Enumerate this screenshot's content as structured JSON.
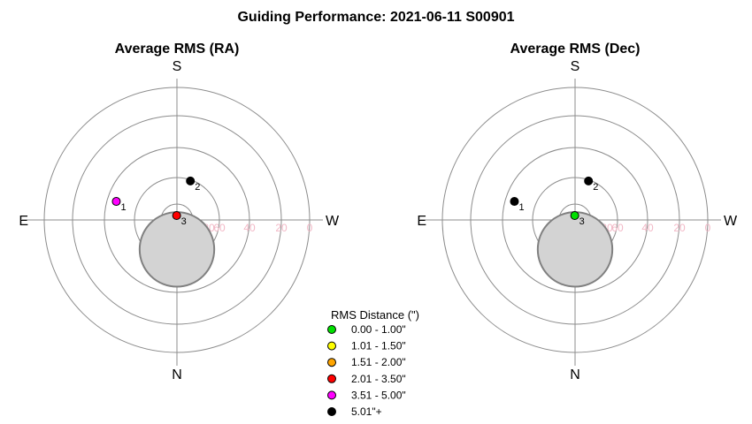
{
  "title": "Guiding Performance: 2021-06-11 S00901",
  "chart_data": [
    {
      "type": "scatter",
      "subtitle": "Average RMS (RA)",
      "compass": {
        "top": "S",
        "bottom": "N",
        "left": "E",
        "right": "W"
      },
      "tick_labels": [
        "80",
        "60",
        "40",
        "20",
        "0"
      ],
      "altitude_rings": [
        80,
        60,
        40,
        20,
        0
      ],
      "points": [
        {
          "label": "1",
          "azimuth": 73,
          "altitude": 47,
          "rms_category": "3.51 - 5.00\""
        },
        {
          "label": "2",
          "azimuth": 341,
          "altitude": 62,
          "rms_category": "5.01\"+"
        },
        {
          "label": "3",
          "azimuth": 4,
          "altitude": 87,
          "rms_category": "2.01 - 3.50\""
        }
      ],
      "obstruction": {
        "azimuth": 180,
        "altitude": 70,
        "radius_deg": 25
      }
    },
    {
      "type": "scatter",
      "subtitle": "Average RMS (Dec)",
      "compass": {
        "top": "S",
        "bottom": "N",
        "left": "E",
        "right": "W"
      },
      "tick_labels": [
        "80",
        "60",
        "40",
        "20",
        "0"
      ],
      "altitude_rings": [
        80,
        60,
        40,
        20,
        0
      ],
      "points": [
        {
          "label": "1",
          "azimuth": 73,
          "altitude": 47,
          "rms_category": "5.01\"+"
        },
        {
          "label": "2",
          "azimuth": 341,
          "altitude": 62,
          "rms_category": "5.01\"+"
        },
        {
          "label": "3",
          "azimuth": 4,
          "altitude": 87,
          "rms_category": "0.00 - 1.00\""
        }
      ],
      "obstruction": {
        "azimuth": 180,
        "altitude": 70,
        "radius_deg": 25
      }
    }
  ],
  "legend": {
    "title": "RMS Distance (\")",
    "items": [
      {
        "label": "0.00 - 1.00\"",
        "color": "#00e000"
      },
      {
        "label": "1.01 - 1.50\"",
        "color": "#ffff00"
      },
      {
        "label": "1.51 - 2.00\"",
        "color": "#ffa500"
      },
      {
        "label": "2.01 - 3.50\"",
        "color": "#ff0000"
      },
      {
        "label": "3.51 - 5.00\"",
        "color": "#ff00ff"
      },
      {
        "label": "5.01\"+",
        "color": "#000000"
      }
    ]
  }
}
